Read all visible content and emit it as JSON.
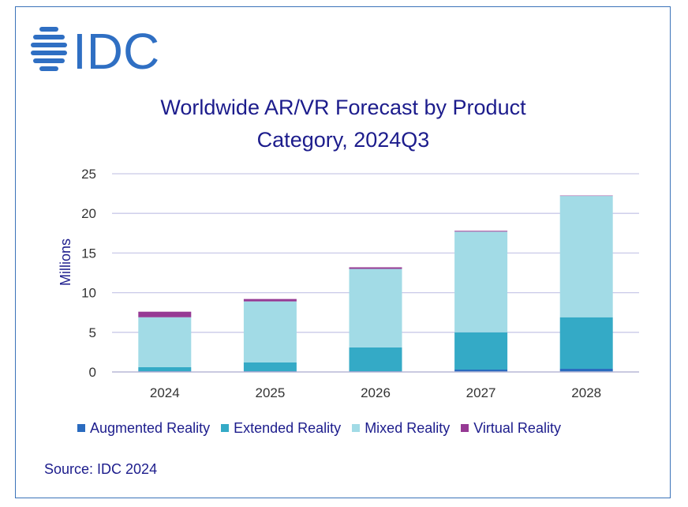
{
  "brand": {
    "logo_text": "IDC",
    "colors": {
      "frame": "#3b73b9",
      "logo": "#2f6fc3",
      "title": "#1c1c8c",
      "grid": "#c9c9e8"
    }
  },
  "chart_data": {
    "type": "bar",
    "stacked": true,
    "title_lines": [
      "Worldwide AR/VR Forecast by Product",
      "Category, 2024Q3"
    ],
    "ylabel": "Millions",
    "xlabel": "",
    "ylim": [
      0,
      25
    ],
    "yticks": [
      0,
      5,
      10,
      15,
      20,
      25
    ],
    "grid": true,
    "legend_position": "bottom",
    "categories": [
      "2024",
      "2025",
      "2026",
      "2027",
      "2028"
    ],
    "series": [
      {
        "name": "Augmented Reality",
        "color": "#2a6bbf",
        "values": [
          0.1,
          0.1,
          0.1,
          0.3,
          0.4
        ]
      },
      {
        "name": "Extended Reality",
        "color": "#34aac6",
        "values": [
          0.5,
          1.1,
          3.0,
          4.7,
          6.5
        ]
      },
      {
        "name": "Mixed Reality",
        "color": "#a2dbe6",
        "values": [
          6.3,
          7.7,
          9.9,
          12.7,
          15.3
        ]
      },
      {
        "name": "Virtual Reality",
        "color": "#963a94",
        "values": [
          0.7,
          0.3,
          0.2,
          0.1,
          0.05
        ]
      }
    ]
  },
  "source": "Source: IDC 2024"
}
